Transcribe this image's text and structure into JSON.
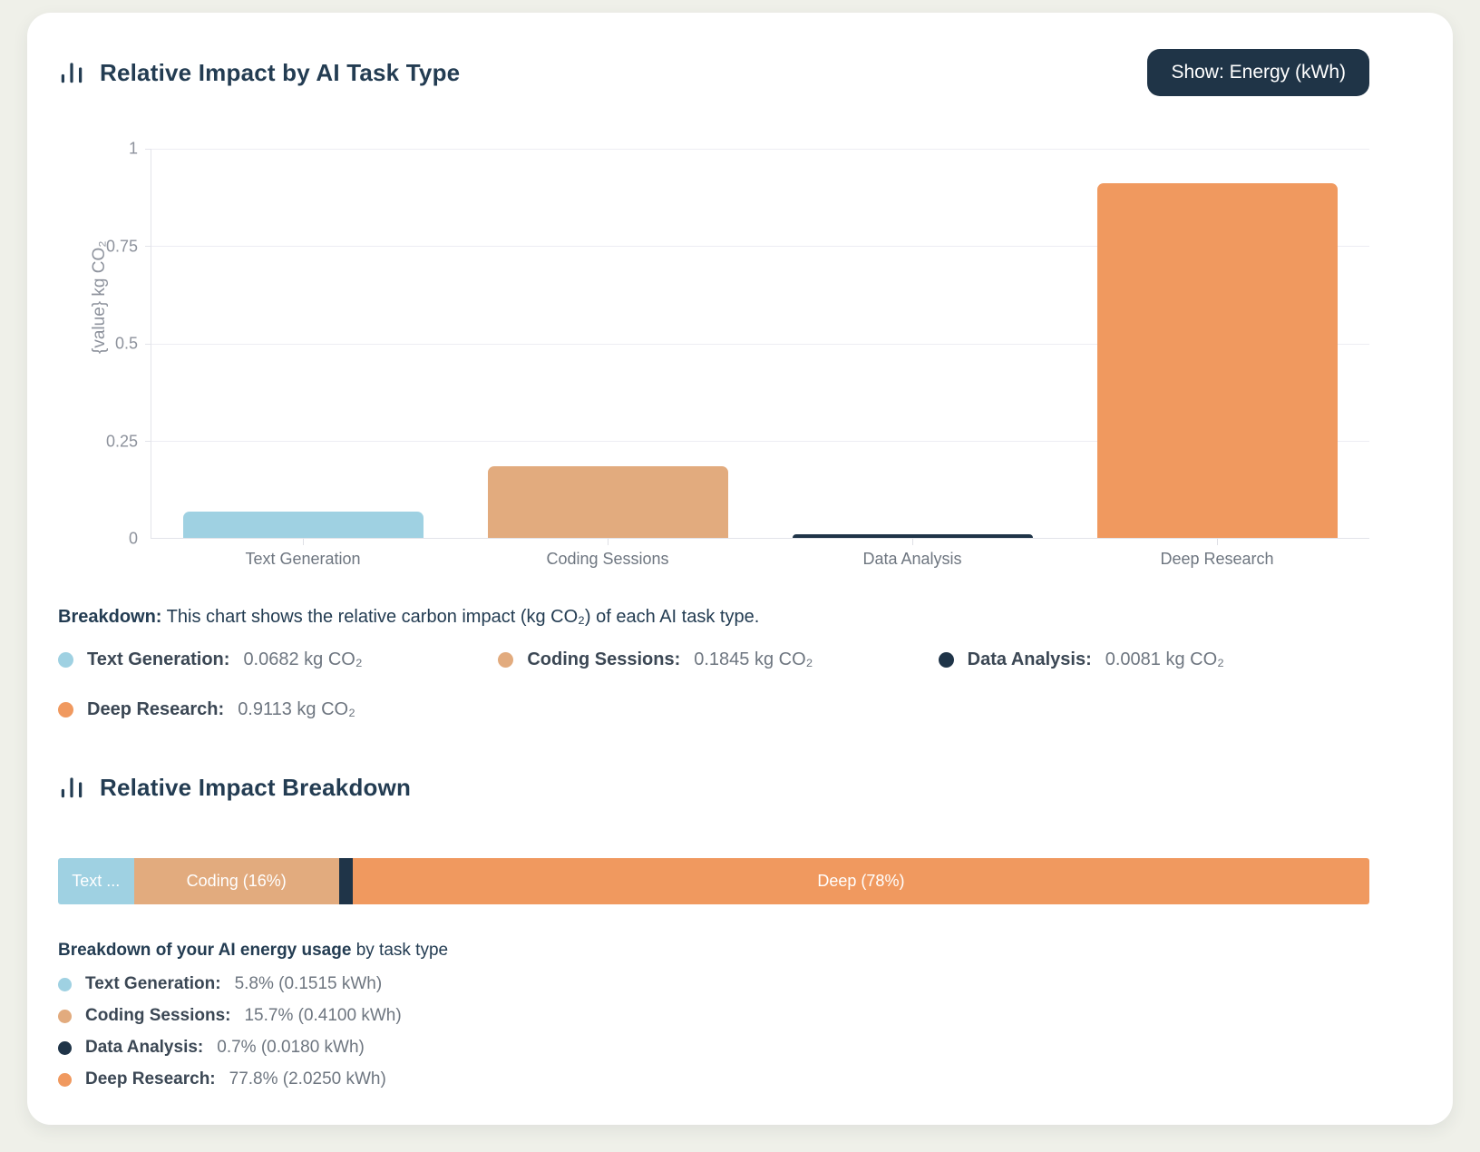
{
  "page": {
    "background": "#eff0e9",
    "card_background": "#ffffff"
  },
  "colors": {
    "accent_navy": "#1f3447",
    "text_generation": "#9fd1e2",
    "coding_sessions": "#e2ab7e",
    "data_analysis": "#1f3448",
    "deep_research": "#f0995f"
  },
  "section1": {
    "title": "Relative Impact by AI Task Type",
    "toggle_button_label": "Show: Energy (kWh)",
    "note_bold": "Breakdown:",
    "note_rest": " This chart shows the relative carbon impact (kg CO₂) of each AI task type.",
    "legend": [
      {
        "label": "Text Generation:",
        "value": "0.0682 kg CO₂",
        "color": "#9fd1e2"
      },
      {
        "label": "Coding Sessions:",
        "value": "0.1845 kg CO₂",
        "color": "#e2ab7e"
      },
      {
        "label": "Data Analysis:",
        "value": "0.0081 kg CO₂",
        "color": "#1f3448"
      },
      {
        "label": "Deep Research:",
        "value": "0.9113 kg CO₂",
        "color": "#f0995f"
      }
    ]
  },
  "section2": {
    "title": "Relative Impact Breakdown",
    "subtitle_bold": "Breakdown of your AI energy usage",
    "subtitle_rest": " by task type",
    "legend": [
      {
        "label": "Text Generation:",
        "value": "5.8% (0.1515 kWh)",
        "color": "#9fd1e2"
      },
      {
        "label": "Coding Sessions:",
        "value": "15.7% (0.4100 kWh)",
        "color": "#e2ab7e"
      },
      {
        "label": "Data Analysis:",
        "value": "0.7% (0.0180 kWh)",
        "color": "#1f3448"
      },
      {
        "label": "Deep Research:",
        "value": "77.8% (2.0250 kWh)",
        "color": "#f0995f"
      }
    ]
  },
  "chart_data": [
    {
      "type": "bar",
      "title": "Relative Impact by AI Task Type",
      "categories": [
        "Text Generation",
        "Coding Sessions",
        "Data Analysis",
        "Deep Research"
      ],
      "values": [
        0.0682,
        0.1845,
        0.0081,
        0.9113
      ],
      "colors": [
        "#9fd1e2",
        "#e2ab7e",
        "#1f3448",
        "#f0995f"
      ],
      "unit": "kg CO₂",
      "ylabel": "{value} kg CO₂",
      "xlabel": "",
      "ylim": [
        0,
        1
      ],
      "yticks": [
        1,
        0.75,
        0.5,
        0.25,
        0
      ],
      "grid": true,
      "legend_position": "none"
    },
    {
      "type": "bar",
      "subtype": "stacked-horizontal",
      "title": "Relative Impact Breakdown",
      "unit": "kWh",
      "segments": [
        {
          "name": "Text Generation",
          "display_label": "Text ...",
          "pct": 5.8,
          "kwh": 0.1515,
          "color": "#9fd1e2"
        },
        {
          "name": "Coding Sessions",
          "display_label": "Coding (16%)",
          "pct": 15.7,
          "kwh": 0.41,
          "color": "#e2ab7e"
        },
        {
          "name": "Data Analysis",
          "display_label": "",
          "pct": 0.7,
          "kwh": 0.018,
          "color": "#1f3448"
        },
        {
          "name": "Deep Research",
          "display_label": "Deep (78%)",
          "pct": 77.8,
          "kwh": 2.025,
          "color": "#f0995f"
        }
      ]
    }
  ]
}
